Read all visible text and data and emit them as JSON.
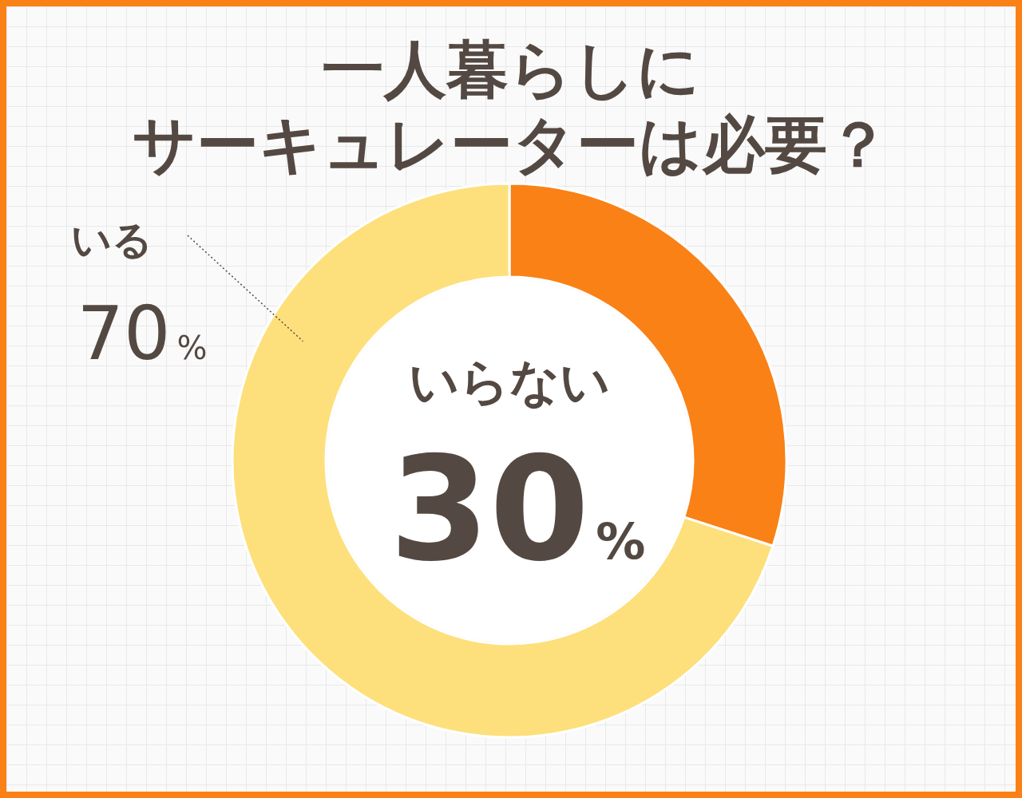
{
  "chart_data": {
    "type": "donut",
    "title": "一人暮らしにサーキュレーターは必要？",
    "categories": [
      "いらない",
      "いる"
    ],
    "values": [
      30,
      70
    ],
    "value_labels": [
      "30%",
      "70%"
    ],
    "colors": [
      "#f98116",
      "#fde07c"
    ]
  }
}
